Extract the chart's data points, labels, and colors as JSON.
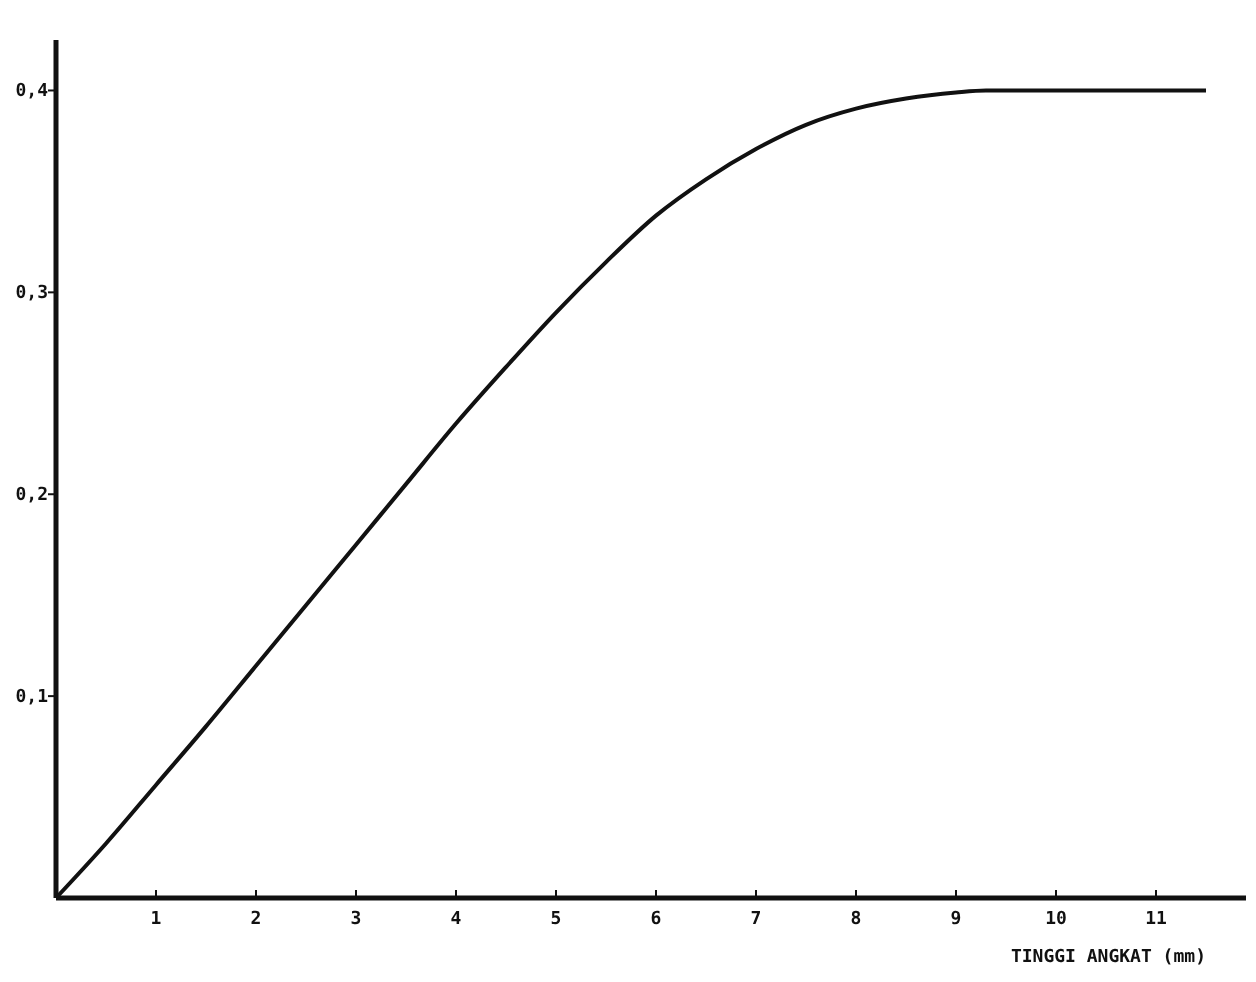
{
  "chart_data": {
    "type": "line",
    "xlabel": "TINGGI ANGKAT (mm)",
    "x": [
      0,
      0.5,
      1,
      1.5,
      2,
      2.5,
      3,
      3.5,
      4,
      4.5,
      5,
      5.5,
      6,
      6.5,
      7,
      7.5,
      8,
      8.5,
      9,
      9.3,
      11.5
    ],
    "series": [
      {
        "color": "#111111",
        "values": [
          0,
          0.027,
          0.056,
          0.085,
          0.115,
          0.145,
          0.175,
          0.205,
          0.235,
          0.263,
          0.29,
          0.315,
          0.338,
          0.356,
          0.371,
          0.383,
          0.391,
          0.396,
          0.399,
          0.4,
          0.4
        ]
      }
    ],
    "xlim": [
      0,
      11.9
    ],
    "ylim": [
      0,
      0.425
    ],
    "xticks": [
      1,
      2,
      3,
      4,
      5,
      6,
      7,
      8,
      9,
      10,
      11
    ],
    "yticks": [
      {
        "value": 0.1,
        "label": "0,1"
      },
      {
        "value": 0.2,
        "label": "0,2"
      },
      {
        "value": 0.3,
        "label": "0,3"
      },
      {
        "value": 0.4,
        "label": "0,4"
      }
    ],
    "grid": false,
    "marker": "none",
    "line_style": "solid"
  }
}
